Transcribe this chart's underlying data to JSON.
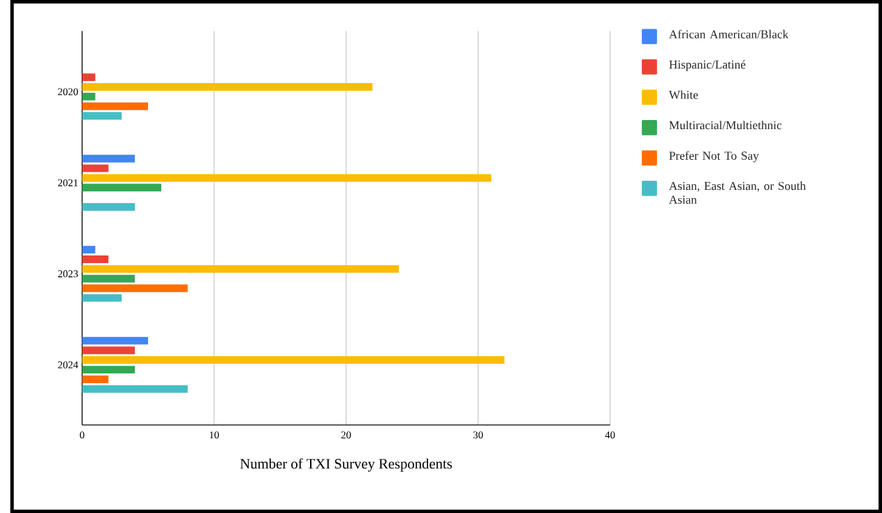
{
  "chart_data": {
    "type": "bar",
    "orientation": "horizontal",
    "xlabel": "Number of TXI Survey Respondents",
    "categories": [
      "2020",
      "2021",
      "2023",
      "2024"
    ],
    "series": [
      {
        "name": "African American/Black",
        "color": "#4285f4",
        "values": [
          null,
          4,
          1,
          5
        ]
      },
      {
        "name": "Hispanic/Latiné",
        "color": "#ea4335",
        "values": [
          1,
          2,
          2,
          4
        ]
      },
      {
        "name": "White",
        "color": "#fbbc04",
        "values": [
          22,
          31,
          24,
          32
        ]
      },
      {
        "name": "Multiracial/Multiethnic",
        "color": "#34a853",
        "values": [
          1,
          6,
          4,
          4
        ]
      },
      {
        "name": "Prefer Not To Say",
        "color": "#ff6d01",
        "values": [
          5,
          null,
          8,
          2
        ]
      },
      {
        "name": "Asian, East Asian, or South Asian",
        "color": "#46bdc6",
        "values": [
          3,
          4,
          3,
          8
        ]
      }
    ],
    "xlim": [
      0,
      40
    ],
    "xticks": [
      0,
      10,
      20,
      30,
      40
    ],
    "grid": "x",
    "legend": "top right"
  }
}
